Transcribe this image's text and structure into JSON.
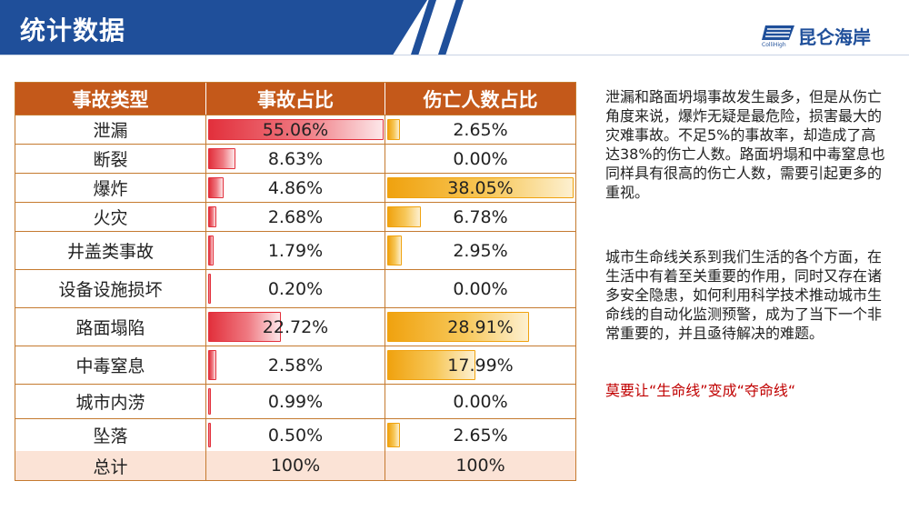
{
  "header": {
    "title": "统计数据",
    "logo_text": "昆仑海岸",
    "logo_sub": "ColliHigh",
    "colors": {
      "brand": "#1f4f9a"
    }
  },
  "table": {
    "columns": [
      "事故类型",
      "事故占比",
      "伤亡人数占比"
    ],
    "rows": [
      {
        "type": "泄漏",
        "accident": "55.06%",
        "accident_value": 55.06,
        "casualty": "2.65%",
        "casualty_value": 2.65
      },
      {
        "type": "断裂",
        "accident": "8.63%",
        "accident_value": 8.63,
        "casualty": "0.00%",
        "casualty_value": 0.0
      },
      {
        "type": "爆炸",
        "accident": "4.86%",
        "accident_value": 4.86,
        "casualty": "38.05%",
        "casualty_value": 38.05
      },
      {
        "type": "火灾",
        "accident": "2.68%",
        "accident_value": 2.68,
        "casualty": "6.78%",
        "casualty_value": 6.78
      },
      {
        "type": "井盖类事故",
        "accident": "1.79%",
        "accident_value": 1.79,
        "casualty": "2.95%",
        "casualty_value": 2.95
      },
      {
        "type": "设备设施损坏",
        "accident": "0.20%",
        "accident_value": 0.2,
        "casualty": "0.00%",
        "casualty_value": 0.0
      },
      {
        "type": "路面塌陷",
        "accident": "22.72%",
        "accident_value": 22.72,
        "casualty": "28.91%",
        "casualty_value": 28.91
      },
      {
        "type": "中毒窒息",
        "accident": "2.58%",
        "accident_value": 2.58,
        "casualty": "17.99%",
        "casualty_value": 17.99
      },
      {
        "type": "城市内涝",
        "accident": "0.99%",
        "accident_value": 0.99,
        "casualty": "0.00%",
        "casualty_value": 0.0
      },
      {
        "type": "坠落",
        "accident": "0.50%",
        "accident_value": 0.5,
        "casualty": "2.65%",
        "casualty_value": 2.65
      }
    ],
    "total": {
      "type": "总计",
      "accident": "100%",
      "casualty": "100%"
    },
    "colors": {
      "header": "#c4591a",
      "accident_bar": "#e2303c",
      "casualty_bar": "#f0a20f",
      "total_bg": "#fbe3d6"
    }
  },
  "notes": {
    "paragraph1": "泄漏和路面坍塌事故发生最多，但是从伤亡角度来说，爆炸无疑是最危险，损害最大的灾难事故。不足5%的事故率，却造成了高达38%的伤亡人数。路面坍塌和中毒窒息也同样具有很高的伤亡人数，需要引起更多的重视。",
    "paragraph2": "城市生命线关系到我们生活的各个方面，在生活中有着至关重要的作用，同时又存在诸多安全隐患，如何利用科学技术推动城市生命线的自动化监测预警，成为了当下一个非常重要的，并且亟待解决的难题。",
    "slogan": "莫要让“生命线”变成“夺命线“",
    "colors": {
      "slogan": "#c00000"
    }
  }
}
